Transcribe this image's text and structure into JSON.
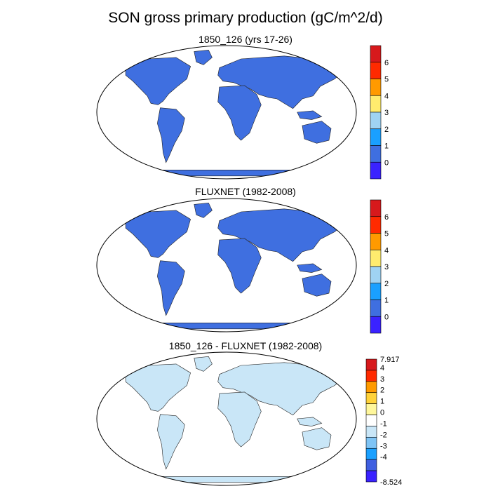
{
  "title": "SON gross primary production (gC/m^2/d)",
  "panels": [
    {
      "title": "1850_126 (yrs 17-26)",
      "colorbar": {
        "labels": [
          "6",
          "5",
          "4",
          "3",
          "2",
          "1",
          "0"
        ],
        "colors": [
          "#d7191c",
          "#ff2a00",
          "#ff9a00",
          "#ffec6e",
          "#9fd3f3",
          "#1aa0ff",
          "#3f6fe0",
          "#3a22ff"
        ]
      }
    },
    {
      "title": "FLUXNET (1982-2008)",
      "colorbar": {
        "labels": [
          "6",
          "5",
          "4",
          "3",
          "2",
          "1",
          "0"
        ],
        "colors": [
          "#d7191c",
          "#ff2a00",
          "#ff9a00",
          "#ffec6e",
          "#9fd3f3",
          "#1aa0ff",
          "#3f6fe0",
          "#3a22ff"
        ]
      }
    },
    {
      "title": "1850_126 - FLUXNET (1982-2008)",
      "colorbar": {
        "labels": [
          "7.917",
          "4",
          "3",
          "2",
          "1",
          "0",
          "-1",
          "-2",
          "-3",
          "-4",
          "-8.524"
        ],
        "colors": [
          "#d7191c",
          "#ff2a00",
          "#ff9a00",
          "#ffd23a",
          "#fff79c",
          "#ffffff",
          "#c9e6f7",
          "#7fc4f5",
          "#1aa0ff",
          "#3f5fe0",
          "#3a22ff"
        ]
      }
    }
  ]
}
